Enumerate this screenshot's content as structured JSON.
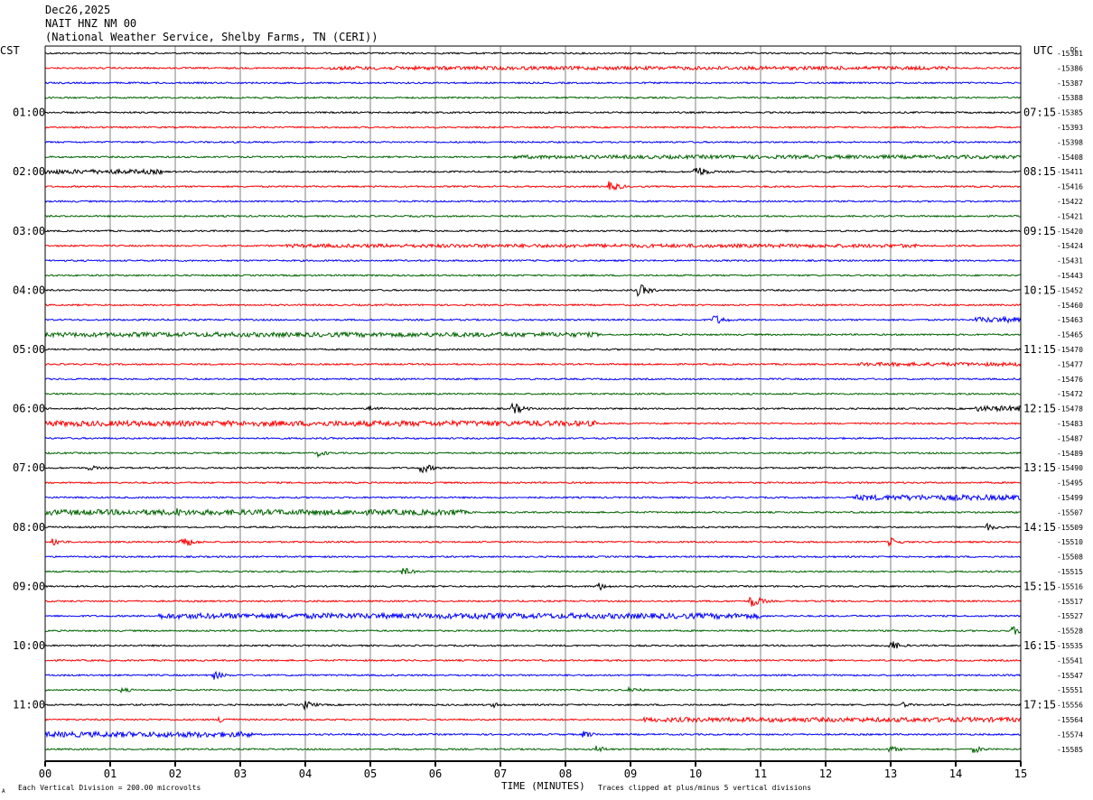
{
  "header": {
    "date": "Dec26,2025",
    "station": "NAIT HNZ NM 00",
    "location": "(National Weather Service, Shelby Farms, TN (CERI))"
  },
  "axes": {
    "left_tz": "CST",
    "right_tz": "UTC",
    "dc_label": "DC",
    "xlabel": "TIME (MINUTES)",
    "footer_left": "Each Vertical Division =  200.00 microvolts",
    "footer_right": "Traces clipped at plus/minus 5 vertical divisions",
    "footer_mark": "A"
  },
  "colors": {
    "cycle": [
      "#000000",
      "#ff0000",
      "#0000ff",
      "#006400"
    ],
    "grid": "#808080",
    "axis": "#000000"
  },
  "chart_data": {
    "type": "line",
    "xlim": [
      0,
      15
    ],
    "x_ticks": [
      "00",
      "01",
      "02",
      "03",
      "04",
      "05",
      "06",
      "07",
      "08",
      "09",
      "10",
      "11",
      "12",
      "13",
      "14",
      "15"
    ],
    "left_hour_labels": [
      "01:00",
      "02:00",
      "03:00",
      "04:00",
      "05:00",
      "06:00",
      "07:00",
      "08:00",
      "09:00",
      "10:00",
      "11:00"
    ],
    "right_hour_labels": [
      "07:15",
      "08:15",
      "09:15",
      "10:15",
      "11:15",
      "12:15",
      "13:15",
      "14:15",
      "15:15",
      "16:15",
      "17:15"
    ],
    "dc_offsets": [
      "-15381",
      "-15386",
      "-15387",
      "-15388",
      "-15385",
      "-15393",
      "-15398",
      "-15408",
      "-15411",
      "-15416",
      "-15422",
      "-15421",
      "-15420",
      "-15424",
      "-15431",
      "-15443",
      "-15452",
      "-15460",
      "-15463",
      "-15465",
      "-15470",
      "-15477",
      "-15476",
      "-15472",
      "-15478",
      "-15483",
      "-15487",
      "-15489",
      "-15490",
      "-15495",
      "-15499",
      "-15507",
      "-15509",
      "-15510",
      "-15508",
      "-15515",
      "-15516",
      "-15517",
      "-15527",
      "-15528",
      "-15535",
      "-15541",
      "-15547",
      "-15551",
      "-15556",
      "-15564",
      "-15574",
      "-15585"
    ],
    "events": [
      {
        "trace": 1,
        "start": 4.3,
        "end": 13.9,
        "amp": 2.0,
        "kind": "band"
      },
      {
        "trace": 7,
        "start": 7.2,
        "end": 15,
        "amp": 2.0,
        "kind": "band"
      },
      {
        "trace": 8,
        "start": 0,
        "end": 1.8,
        "amp": 2.5,
        "kind": "band"
      },
      {
        "trace": 8,
        "t": 10.0,
        "amp": 8,
        "kind": "burst"
      },
      {
        "trace": 9,
        "t": 8.7,
        "amp": 6,
        "kind": "burst"
      },
      {
        "trace": 13,
        "start": 3.7,
        "end": 13.4,
        "amp": 2.0,
        "kind": "band"
      },
      {
        "trace": 16,
        "t": 9.15,
        "amp": 7,
        "kind": "burst"
      },
      {
        "trace": 18,
        "t": 10.3,
        "amp": 6,
        "kind": "burst"
      },
      {
        "trace": 18,
        "start": 14.3,
        "end": 15,
        "amp": 3.0,
        "kind": "band"
      },
      {
        "trace": 19,
        "start": 0,
        "end": 8.5,
        "amp": 2.5,
        "kind": "band"
      },
      {
        "trace": 21,
        "start": 12.5,
        "end": 15,
        "amp": 2.0,
        "kind": "band"
      },
      {
        "trace": 24,
        "t": 5.0,
        "amp": 4,
        "kind": "burst"
      },
      {
        "trace": 24,
        "t": 7.2,
        "amp": 7,
        "kind": "burst"
      },
      {
        "trace": 24,
        "start": 14.3,
        "end": 15,
        "amp": 3.0,
        "kind": "band"
      },
      {
        "trace": 25,
        "start": 0,
        "end": 8.5,
        "amp": 3.0,
        "kind": "band"
      },
      {
        "trace": 27,
        "t": 4.2,
        "amp": 4,
        "kind": "burst"
      },
      {
        "trace": 28,
        "t": 0.7,
        "amp": 3,
        "kind": "burst"
      },
      {
        "trace": 28,
        "t": 5.8,
        "amp": 6,
        "kind": "burst"
      },
      {
        "trace": 30,
        "start": 12.4,
        "end": 15,
        "amp": 3.0,
        "kind": "band"
      },
      {
        "trace": 31,
        "start": 0,
        "end": 6.3,
        "amp": 3.0,
        "kind": "band"
      },
      {
        "trace": 31,
        "t": 2.0,
        "amp": 6,
        "kind": "burst"
      },
      {
        "trace": 31,
        "t": 6.3,
        "amp": 5,
        "kind": "burst"
      },
      {
        "trace": 32,
        "t": 14.5,
        "amp": 4,
        "kind": "burst"
      },
      {
        "trace": 33,
        "t": 2.1,
        "amp": 8,
        "kind": "burst"
      },
      {
        "trace": 33,
        "t": 0.15,
        "amp": 4,
        "kind": "burst"
      },
      {
        "trace": 33,
        "t": 13.0,
        "amp": 5,
        "kind": "burst"
      },
      {
        "trace": 35,
        "t": 5.5,
        "amp": 5,
        "kind": "burst"
      },
      {
        "trace": 36,
        "t": 8.5,
        "amp": 5,
        "kind": "burst"
      },
      {
        "trace": 37,
        "t": 10.85,
        "amp": 8,
        "kind": "burst"
      },
      {
        "trace": 38,
        "start": 1.7,
        "end": 11.0,
        "amp": 3.0,
        "kind": "band"
      },
      {
        "trace": 38,
        "t": 6.6,
        "amp": 5,
        "kind": "burst"
      },
      {
        "trace": 39,
        "t": 14.9,
        "amp": 5,
        "kind": "burst"
      },
      {
        "trace": 40,
        "t": 13.0,
        "amp": 6,
        "kind": "burst"
      },
      {
        "trace": 42,
        "t": 2.6,
        "amp": 5,
        "kind": "burst"
      },
      {
        "trace": 43,
        "t": 1.2,
        "amp": 3,
        "kind": "burst"
      },
      {
        "trace": 43,
        "t": 9.0,
        "amp": 4,
        "kind": "burst"
      },
      {
        "trace": 44,
        "t": 4.0,
        "amp": 5,
        "kind": "burst"
      },
      {
        "trace": 44,
        "t": 6.9,
        "amp": 3,
        "kind": "burst"
      },
      {
        "trace": 44,
        "t": 13.2,
        "amp": 3,
        "kind": "burst"
      },
      {
        "trace": 45,
        "start": 9.2,
        "end": 15,
        "amp": 2.5,
        "kind": "band"
      },
      {
        "trace": 45,
        "t": 2.7,
        "amp": 4,
        "kind": "burst"
      },
      {
        "trace": 46,
        "start": 0,
        "end": 3.2,
        "amp": 3.0,
        "kind": "band"
      },
      {
        "trace": 46,
        "t": 8.3,
        "amp": 4,
        "kind": "burst"
      },
      {
        "trace": 47,
        "t": 8.5,
        "amp": 4,
        "kind": "burst"
      },
      {
        "trace": 47,
        "t": 13.0,
        "amp": 4,
        "kind": "burst"
      },
      {
        "trace": 47,
        "t": 14.3,
        "amp": 4,
        "kind": "burst"
      }
    ]
  }
}
